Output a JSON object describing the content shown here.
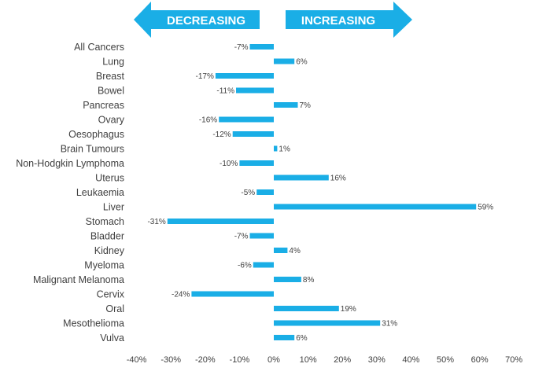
{
  "arrows": {
    "left_label": "DECREASING",
    "right_label": "INCREASING"
  },
  "colors": {
    "bar": "#1aaee6",
    "arrow": "#1aaee6",
    "text": "#404040",
    "grid": "#d9d9d9"
  },
  "chart_data": {
    "type": "bar",
    "orientation": "horizontal",
    "title": "",
    "xlabel": "",
    "ylabel": "",
    "xlim": [
      -40,
      70
    ],
    "grid": false,
    "x_ticks": [
      -40,
      -30,
      -20,
      -10,
      0,
      10,
      20,
      30,
      40,
      50,
      60,
      70
    ],
    "x_tick_labels": [
      "-40%",
      "-30%",
      "-20%",
      "-10%",
      "0%",
      "10%",
      "20%",
      "30%",
      "40%",
      "50%",
      "60%",
      "70%"
    ],
    "categories": [
      "All Cancers",
      "Lung",
      "Breast",
      "Bowel",
      "Pancreas",
      "Ovary",
      "Oesophagus",
      "Brain Tumours",
      "Non-Hodgkin Lymphoma",
      "Uterus",
      "Leukaemia",
      "Liver",
      "Stomach",
      "Bladder",
      "Kidney",
      "Myeloma",
      "Malignant Melanoma",
      "Cervix",
      "Oral",
      "Mesothelioma",
      "Vulva"
    ],
    "values": [
      -7,
      6,
      -17,
      -11,
      7,
      -16,
      -12,
      1,
      -10,
      16,
      -5,
      59,
      -31,
      -7,
      4,
      -6,
      8,
      -24,
      19,
      31,
      6
    ],
    "data_labels": [
      "-7%",
      "6%",
      "-17%",
      "-11%",
      "7%",
      "-16%",
      "-12%",
      "1%",
      "-10%",
      "16%",
      "-5%",
      "59%",
      "-31%",
      "-7%",
      "4%",
      "-6%",
      "8%",
      "-24%",
      "19%",
      "31%",
      "6%"
    ]
  }
}
